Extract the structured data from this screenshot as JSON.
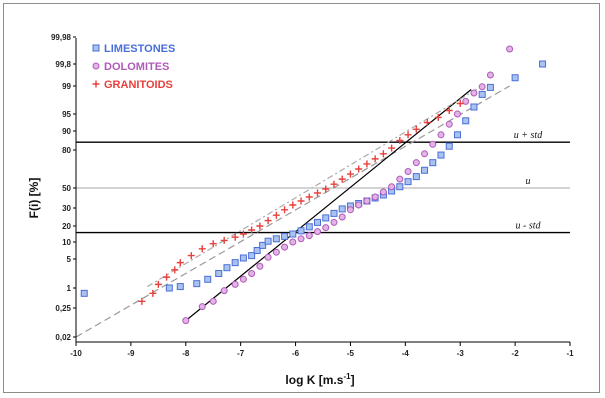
{
  "chart_data": {
    "type": "scatter",
    "xlabel": "log K [m.s",
    "xlabel_sup": "-1",
    "xlabel_end": "]",
    "ylabel": "F(i) [%]",
    "xlim": [
      -10,
      -1
    ],
    "x_ticks": [
      -10,
      -9,
      -8,
      -7,
      -6,
      -5,
      -4,
      -3,
      -2,
      -1
    ],
    "y_scale": "normal-probability",
    "y_ticks": [
      {
        "label": "0,02",
        "value": 0.02
      },
      {
        "label": "0,25",
        "value": 0.25
      },
      {
        "label": "1",
        "value": 1
      },
      {
        "label": "5",
        "value": 5
      },
      {
        "label": "10",
        "value": 10
      },
      {
        "label": "20",
        "value": 20
      },
      {
        "label": "30",
        "value": 30
      },
      {
        "label": "50",
        "value": 50
      },
      {
        "label": "80",
        "value": 80
      },
      {
        "label": "90",
        "value": 90
      },
      {
        "label": "95",
        "value": 95
      },
      {
        "label": "99",
        "value": 99
      },
      {
        "label": "99,8",
        "value": 99.8
      },
      {
        "label": "99,98",
        "value": 99.98
      }
    ],
    "grid": false,
    "legend_position": "top-left",
    "reference_lines": [
      {
        "label": "u + std",
        "y": 84.1,
        "color": "#000000"
      },
      {
        "label": "u",
        "y": 50,
        "color": "#aaaaaa"
      },
      {
        "label": "u - std",
        "y": 15.9,
        "color": "#000000"
      }
    ],
    "series": [
      {
        "name": "LIMESTONES",
        "marker": "square",
        "color": "#4a6fd8",
        "fit": {
          "x0": -10,
          "y0": 0.02,
          "x1": -2.1,
          "y1": 99.0,
          "style": "dash",
          "color": "#999999"
        },
        "points": [
          [
            -9.85,
            0.8
          ],
          [
            -8.3,
            1.0
          ],
          [
            -8.1,
            1.2
          ],
          [
            -7.8,
            1.6
          ],
          [
            -7.6,
            2.2
          ],
          [
            -7.4,
            3.0
          ],
          [
            -7.25,
            3.8
          ],
          [
            -7.1,
            4.5
          ],
          [
            -6.95,
            5.3
          ],
          [
            -6.8,
            6.0
          ],
          [
            -6.7,
            7.5
          ],
          [
            -6.6,
            9.0
          ],
          [
            -6.5,
            10.5
          ],
          [
            -6.35,
            12.0
          ],
          [
            -6.2,
            13.5
          ],
          [
            -6.05,
            15.0
          ],
          [
            -5.9,
            17.0
          ],
          [
            -5.75,
            19.5
          ],
          [
            -5.6,
            22.0
          ],
          [
            -5.45,
            24.5
          ],
          [
            -5.3,
            27.0
          ],
          [
            -5.15,
            29.5
          ],
          [
            -5.0,
            32.0
          ],
          [
            -4.85,
            34.5
          ],
          [
            -4.7,
            37.0
          ],
          [
            -4.55,
            40.0
          ],
          [
            -4.4,
            43.0
          ],
          [
            -4.25,
            47.0
          ],
          [
            -4.1,
            51.0
          ],
          [
            -3.95,
            55.0
          ],
          [
            -3.8,
            59.0
          ],
          [
            -3.65,
            64.0
          ],
          [
            -3.5,
            70.0
          ],
          [
            -3.35,
            76.0
          ],
          [
            -3.2,
            82.0
          ],
          [
            -3.05,
            88.0
          ],
          [
            -2.9,
            93.0
          ],
          [
            -2.75,
            96.0
          ],
          [
            -2.6,
            97.8
          ],
          [
            -2.45,
            98.8
          ],
          [
            -2.0,
            99.3
          ],
          [
            -1.5,
            99.8
          ]
        ]
      },
      {
        "name": "DOLOMITES",
        "marker": "circle",
        "color": "#b05ab8",
        "fit": {
          "x0": -8.0,
          "y0": 0.15,
          "x1": -2.8,
          "y1": 98.5,
          "style": "solid",
          "color": "#000000"
        },
        "points": [
          [
            -8.0,
            0.15
          ],
          [
            -7.7,
            0.3
          ],
          [
            -7.5,
            0.5
          ],
          [
            -7.3,
            0.9
          ],
          [
            -7.1,
            1.5
          ],
          [
            -6.95,
            2.2
          ],
          [
            -6.8,
            3.0
          ],
          [
            -6.65,
            4.0
          ],
          [
            -6.5,
            5.5
          ],
          [
            -6.35,
            7.0
          ],
          [
            -6.2,
            8.5
          ],
          [
            -6.05,
            10.0
          ],
          [
            -5.9,
            12.0
          ],
          [
            -5.75,
            14.0
          ],
          [
            -5.6,
            16.5
          ],
          [
            -5.45,
            19.0
          ],
          [
            -5.3,
            22.0
          ],
          [
            -5.15,
            25.0
          ],
          [
            -5.0,
            29.0
          ],
          [
            -4.85,
            33.0
          ],
          [
            -4.7,
            37.0
          ],
          [
            -4.55,
            41.0
          ],
          [
            -4.4,
            46.0
          ],
          [
            -4.25,
            51.0
          ],
          [
            -4.1,
            57.0
          ],
          [
            -3.95,
            63.0
          ],
          [
            -3.8,
            70.0
          ],
          [
            -3.65,
            77.0
          ],
          [
            -3.5,
            83.0
          ],
          [
            -3.35,
            88.0
          ],
          [
            -3.2,
            92.0
          ],
          [
            -3.05,
            95.0
          ],
          [
            -2.9,
            96.8
          ],
          [
            -2.75,
            98.0
          ],
          [
            -2.6,
            98.9
          ],
          [
            -2.45,
            99.4
          ],
          [
            -2.1,
            99.9
          ]
        ]
      },
      {
        "name": "GRANITOIDS",
        "marker": "plus",
        "color": "#e8403c",
        "fit": {
          "x0": -8.7,
          "y0": 1.2,
          "x1": -2.6,
          "y1": 99.0,
          "style": "dashdot",
          "color": "#aaaaaa"
        },
        "points": [
          [
            -8.8,
            0.5
          ],
          [
            -8.6,
            0.8
          ],
          [
            -8.5,
            1.5
          ],
          [
            -8.35,
            2.5
          ],
          [
            -8.2,
            3.5
          ],
          [
            -8.1,
            4.5
          ],
          [
            -7.9,
            6.0
          ],
          [
            -7.7,
            8.0
          ],
          [
            -7.5,
            9.5
          ],
          [
            -7.3,
            11.0
          ],
          [
            -7.1,
            13.0
          ],
          [
            -6.95,
            15.0
          ],
          [
            -6.8,
            17.5
          ],
          [
            -6.65,
            20.0
          ],
          [
            -6.5,
            23.0
          ],
          [
            -6.35,
            26.0
          ],
          [
            -6.2,
            29.0
          ],
          [
            -6.05,
            33.0
          ],
          [
            -5.9,
            37.0
          ],
          [
            -5.75,
            41.0
          ],
          [
            -5.6,
            45.0
          ],
          [
            -5.45,
            49.0
          ],
          [
            -5.3,
            53.0
          ],
          [
            -5.15,
            57.0
          ],
          [
            -5.0,
            61.0
          ],
          [
            -4.85,
            65.0
          ],
          [
            -4.7,
            69.0
          ],
          [
            -4.55,
            73.0
          ],
          [
            -4.4,
            77.0
          ],
          [
            -4.25,
            81.0
          ],
          [
            -4.1,
            85.0
          ],
          [
            -3.95,
            88.0
          ],
          [
            -3.8,
            90.5
          ],
          [
            -3.6,
            92.5
          ],
          [
            -3.4,
            94.0
          ],
          [
            -3.2,
            95.5
          ],
          [
            -3.0,
            96.5
          ]
        ]
      }
    ]
  }
}
